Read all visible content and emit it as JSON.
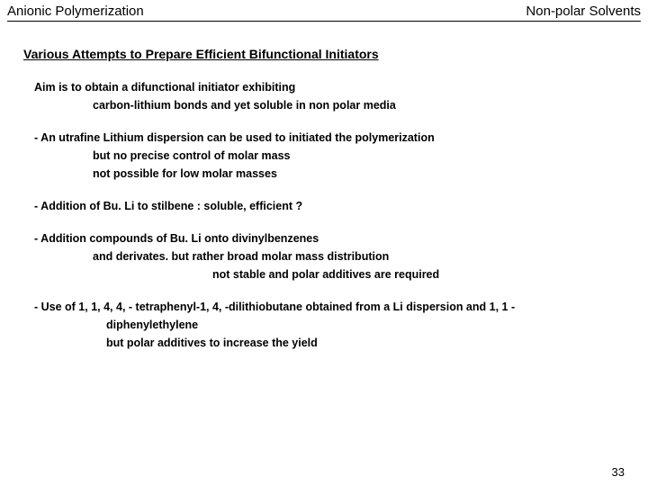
{
  "header": {
    "left": "Anionic Polymerization",
    "right": "Non-polar Solvents"
  },
  "section_title": "Various Attempts to Prepare Efficient Bifunctional Initiators",
  "aim": {
    "line1": "Aim is to obtain a difunctional initiator exhibiting",
    "line2": "carbon-lithium bonds and yet soluble in non polar media"
  },
  "p1": {
    "line1": "- An utrafine Lithium dispersion can be used to initiated the polymerization",
    "line2": "but no precise control of molar mass",
    "line3": "not possible for low molar masses"
  },
  "p2": {
    "line1": "- Addition of Bu. Li to stilbene : soluble, efficient ?"
  },
  "p3": {
    "line1": "- Addition compounds of Bu. Li onto divinylbenzenes",
    "line2": "and derivates.  but rather broad molar mass distribution",
    "line3": "not stable and polar additives are required"
  },
  "p4": {
    "line1": "- Use of 1, 1, 4, 4, - tetraphenyl-1, 4, -dilithiobutane obtained from a Li dispersion and 1, 1 -",
    "line2": "diphenylethylene",
    "line3": "but polar additives to increase the yield"
  },
  "page_number": "33",
  "colors": {
    "text": "#000000",
    "background": "#ffffff",
    "rule": "#000000"
  },
  "typography": {
    "header_fontsize": 15,
    "title_fontsize": 14,
    "body_fontsize": 12.5,
    "body_weight": "bold",
    "font_family": "Arial"
  }
}
